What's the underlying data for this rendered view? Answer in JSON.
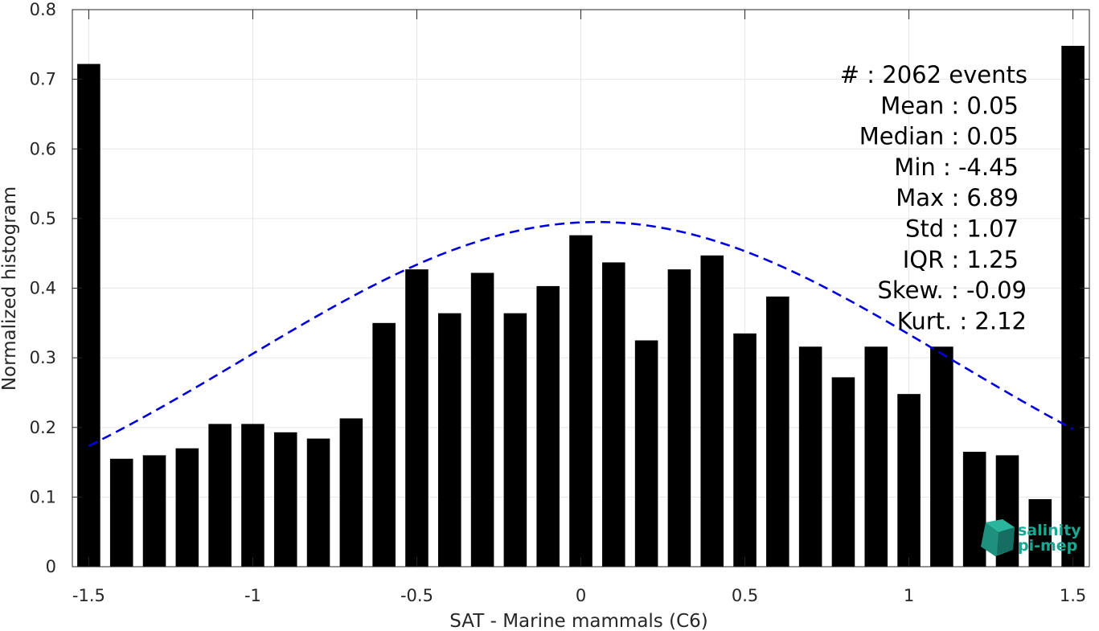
{
  "chart_data": {
    "type": "bar",
    "title": "",
    "xlabel": "SAT - Marine mammals (C6)",
    "ylabel": "Normalized histogram",
    "xlim": [
      -1.55,
      1.55
    ],
    "ylim": [
      0,
      0.8
    ],
    "x_ticks": [
      -1.5,
      -1,
      -0.5,
      0,
      0.5,
      1,
      1.5
    ],
    "x_tick_labels": [
      "-1.5",
      "-1",
      "-0.5",
      "0",
      "0.5",
      "1",
      "1.5"
    ],
    "y_ticks": [
      0,
      0.1,
      0.2,
      0.3,
      0.4,
      0.5,
      0.6,
      0.7,
      0.8
    ],
    "y_tick_labels": [
      "0",
      "0.1",
      "0.2",
      "0.3",
      "0.4",
      "0.5",
      "0.6",
      "0.7",
      "0.8"
    ],
    "grid": true,
    "bar_width": 0.07,
    "x": [
      -1.5,
      -1.4,
      -1.3,
      -1.2,
      -1.1,
      -1.0,
      -0.9,
      -0.8,
      -0.7,
      -0.6,
      -0.5,
      -0.4,
      -0.3,
      -0.2,
      -0.1,
      0.0,
      0.1,
      0.2,
      0.3,
      0.4,
      0.5,
      0.6,
      0.7,
      0.8,
      0.9,
      1.0,
      1.1,
      1.2,
      1.3,
      1.4,
      1.5
    ],
    "values": [
      0.722,
      0.155,
      0.16,
      0.17,
      0.205,
      0.205,
      0.193,
      0.184,
      0.213,
      0.35,
      0.427,
      0.364,
      0.422,
      0.364,
      0.403,
      0.476,
      0.437,
      0.325,
      0.427,
      0.447,
      0.335,
      0.388,
      0.316,
      0.272,
      0.316,
      0.248,
      0.316,
      0.165,
      0.16,
      0.097,
      0.748
    ],
    "bar_color": "#000000",
    "fit_curve": {
      "style": "dashed",
      "color": "#0000dd",
      "mean": 0.05,
      "std": 1.07,
      "peak": 0.495,
      "x_range": [
        -1.5,
        1.5
      ]
    },
    "stats_annotation": [
      "#  : 2062 events",
      "Mean : 0.05",
      "Median : 0.05",
      "Min : -4.45",
      "Max : 6.89",
      "Std : 1.07",
      "IQR : 1.25",
      "Skew. : -0.09",
      "Kurt. : 2.12"
    ],
    "logo": {
      "line1": "salinity",
      "line2": "pi-mep",
      "color": "#1aa892"
    }
  }
}
